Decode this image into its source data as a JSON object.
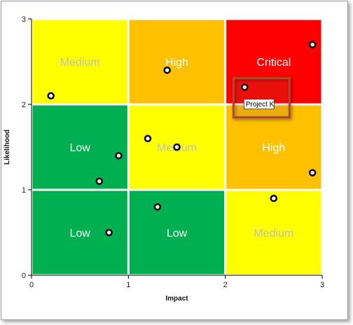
{
  "chart_data": {
    "type": "scatter",
    "title": "",
    "xlabel": "Impact",
    "ylabel": "Likelihood",
    "xlim": [
      0,
      3
    ],
    "ylim": [
      0,
      3
    ],
    "x_ticks": [
      "0",
      "1",
      "2",
      "3"
    ],
    "y_ticks": [
      "0",
      "1",
      "2",
      "3"
    ],
    "grid": false,
    "zones": [
      {
        "x": [
          0,
          1
        ],
        "y": [
          2,
          3
        ],
        "label": "Medium",
        "color": "#ffff00",
        "label_color": "#c0c0c0"
      },
      {
        "x": [
          1,
          2
        ],
        "y": [
          2,
          3
        ],
        "label": "High",
        "color": "#ffc000",
        "label_color": "#ffffff"
      },
      {
        "x": [
          2,
          3
        ],
        "y": [
          2,
          3
        ],
        "label": "Critical",
        "color": "#ff0000",
        "label_color": "#ffffff"
      },
      {
        "x": [
          0,
          1
        ],
        "y": [
          1,
          2
        ],
        "label": "Low",
        "color": "#00b050",
        "label_color": "#ffffff"
      },
      {
        "x": [
          1,
          2
        ],
        "y": [
          1,
          2
        ],
        "label": "Medium",
        "color": "#ffff00",
        "label_color": "#c0c0c0"
      },
      {
        "x": [
          2,
          3
        ],
        "y": [
          1,
          2
        ],
        "label": "High",
        "color": "#ffc000",
        "label_color": "#ffffff"
      },
      {
        "x": [
          0,
          1
        ],
        "y": [
          0,
          1
        ],
        "label": "Low",
        "color": "#00b050",
        "label_color": "#ffffff"
      },
      {
        "x": [
          1,
          2
        ],
        "y": [
          0,
          1
        ],
        "label": "Low",
        "color": "#00b050",
        "label_color": "#ffffff"
      },
      {
        "x": [
          2,
          3
        ],
        "y": [
          0,
          1
        ],
        "label": "Medium",
        "color": "#ffff00",
        "label_color": "#c0c0c0"
      }
    ],
    "points": [
      {
        "x": 0.2,
        "y": 2.1
      },
      {
        "x": 1.4,
        "y": 2.4
      },
      {
        "x": 2.2,
        "y": 2.2,
        "name": "Project K"
      },
      {
        "x": 2.9,
        "y": 2.7
      },
      {
        "x": 1.2,
        "y": 1.6
      },
      {
        "x": 1.5,
        "y": 1.5
      },
      {
        "x": 0.9,
        "y": 1.4
      },
      {
        "x": 0.7,
        "y": 1.1
      },
      {
        "x": 2.9,
        "y": 1.2
      },
      {
        "x": 2.5,
        "y": 0.9
      },
      {
        "x": 1.3,
        "y": 0.8
      },
      {
        "x": 0.8,
        "y": 0.5
      }
    ],
    "tooltip": {
      "point_index": 2,
      "text": "Project K"
    }
  }
}
